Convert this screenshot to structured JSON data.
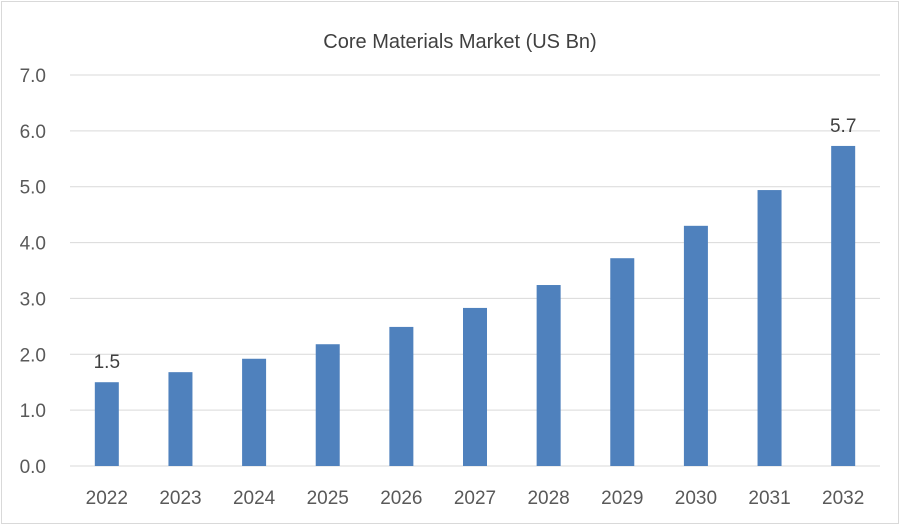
{
  "chart_data": {
    "type": "bar",
    "title": "Core Materials Market (US Bn)",
    "xlabel": "",
    "ylabel": "",
    "categories": [
      "2022",
      "2023",
      "2024",
      "2025",
      "2026",
      "2027",
      "2028",
      "2029",
      "2030",
      "2031",
      "2032"
    ],
    "values": [
      1.5,
      1.68,
      1.92,
      2.18,
      2.49,
      2.83,
      3.24,
      3.72,
      4.3,
      4.94,
      5.73
    ],
    "data_labels": {
      "2022": "1.5",
      "2032": "5.7"
    },
    "ylim": [
      0,
      7
    ],
    "yticks": [
      "0.0",
      "1.0",
      "2.0",
      "3.0",
      "4.0",
      "5.0",
      "6.0",
      "7.0"
    ],
    "grid": true,
    "legend": "none",
    "bar_color": "#4f81bd"
  }
}
